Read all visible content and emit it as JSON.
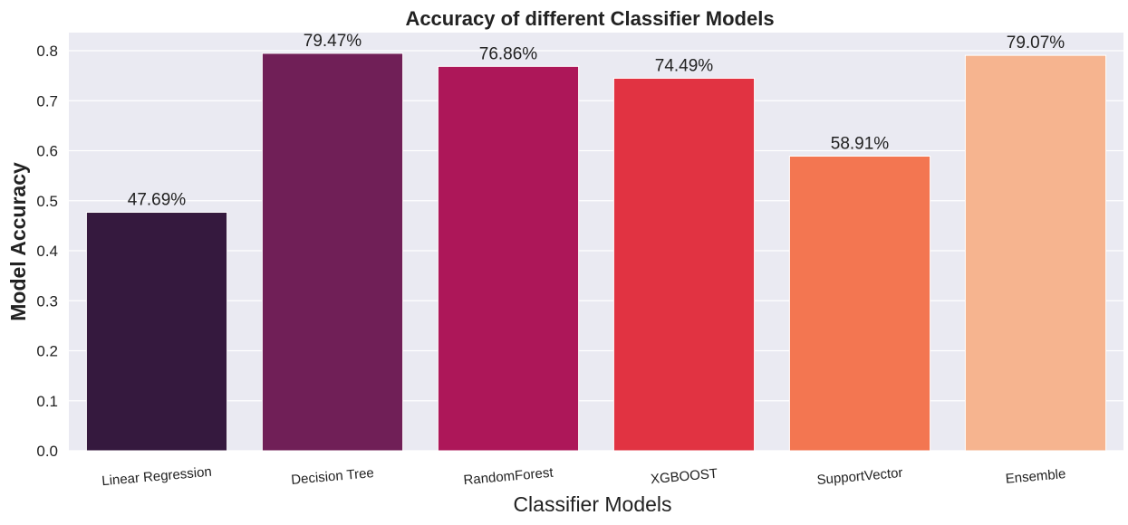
{
  "chart_data": {
    "type": "bar",
    "title": "Accuracy of different Classifier Models",
    "xlabel": "Classifier Models",
    "ylabel": "Model Accuracy",
    "categories": [
      "Linear Regression",
      "Decision Tree",
      "RandomForest",
      "XGBOOST",
      "SupportVector",
      "Ensemble"
    ],
    "values": [
      0.4769,
      0.7947,
      0.7686,
      0.7449,
      0.5891,
      0.7907
    ],
    "data_labels": [
      "47.69%",
      "79.47%",
      "76.86%",
      "74.49%",
      "58.91%",
      "79.07%"
    ],
    "yticks": [
      "0.0",
      "0.1",
      "0.2",
      "0.3",
      "0.4",
      "0.5",
      "0.6",
      "0.7",
      "0.8"
    ],
    "ylim": [
      0,
      0.83
    ],
    "grid": true,
    "legend": "none",
    "colors": [
      "#35193e",
      "#701f57",
      "#ad1759",
      "#e13342",
      "#f37651",
      "#f6b48f"
    ],
    "background_color": "#eaeaf2"
  }
}
